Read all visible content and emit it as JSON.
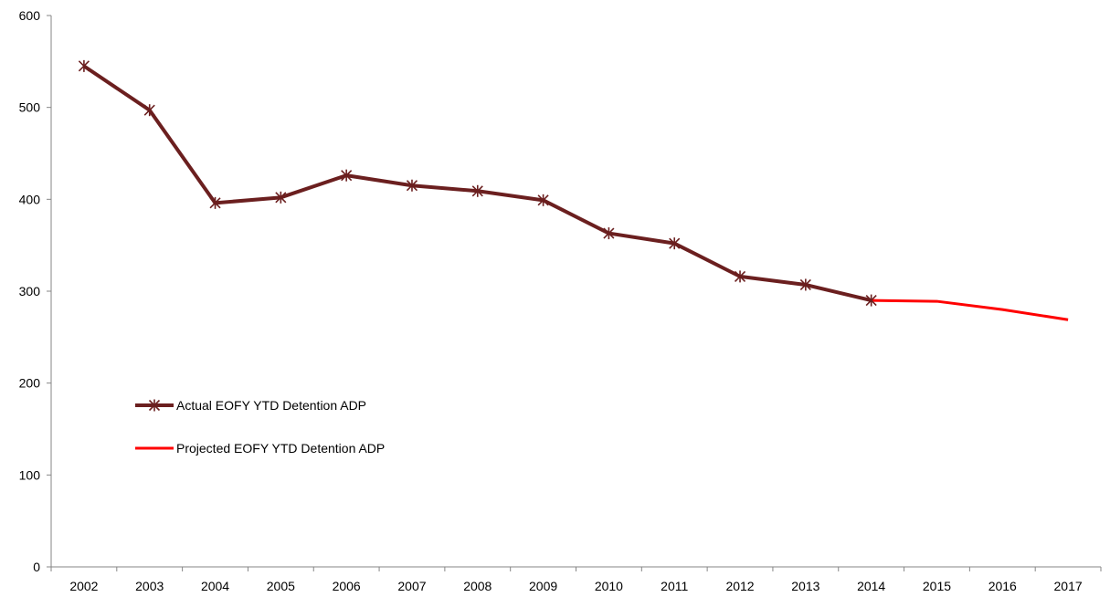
{
  "chart_data": {
    "type": "line",
    "title": "",
    "xlabel": "",
    "ylabel": "",
    "ylim": [
      0,
      600
    ],
    "yticks": [
      0,
      100,
      200,
      300,
      400,
      500,
      600
    ],
    "categories": [
      "2002",
      "2003",
      "2004",
      "2005",
      "2006",
      "2007",
      "2008",
      "2009",
      "2010",
      "2011",
      "2012",
      "2013",
      "2014",
      "2015",
      "2016",
      "2017"
    ],
    "grid": false,
    "legend_position": "left",
    "series": [
      {
        "name": "Actual EOFY YTD Detention ADP",
        "color": "#6b1f1f",
        "marker": "asterisk",
        "values": [
          545,
          497,
          396,
          402,
          426,
          415,
          409,
          399,
          363,
          352,
          316,
          307,
          290,
          null,
          null,
          null
        ]
      },
      {
        "name": "Projected EOFY YTD Detention ADP",
        "color": "#ff0000",
        "marker": "none",
        "values": [
          null,
          null,
          null,
          null,
          null,
          null,
          null,
          null,
          null,
          null,
          null,
          null,
          290,
          289,
          280,
          269
        ]
      }
    ]
  }
}
